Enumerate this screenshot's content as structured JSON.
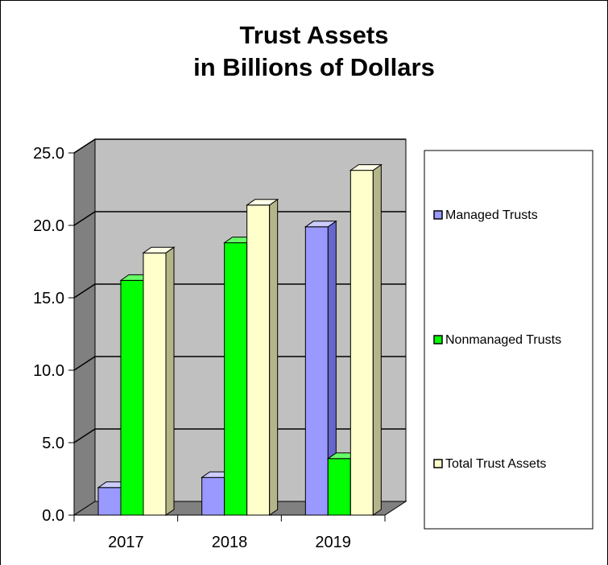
{
  "chart_data": {
    "type": "bar",
    "title_lines": [
      "Trust Assets",
      "in Billions of Dollars"
    ],
    "categories": [
      "2017",
      "2018",
      "2019"
    ],
    "series": [
      {
        "name": "Managed Trusts",
        "values": [
          1.9,
          2.6,
          19.9
        ],
        "color": "#9999ff",
        "side": "#6666cc",
        "top": "#ccccff"
      },
      {
        "name": "Nonmanaged Trusts",
        "values": [
          16.2,
          18.8,
          3.9
        ],
        "color": "#00ff00",
        "side": "#009900",
        "top": "#66ff66"
      },
      {
        "name": "Total Trust Assets",
        "values": [
          18.1,
          21.4,
          23.8
        ],
        "color": "#ffffcc",
        "side": "#b5b58a",
        "top": "#ffffe8"
      }
    ],
    "yticks": [
      "0.0",
      "5.0",
      "10.0",
      "15.0",
      "20.0",
      "25.0"
    ],
    "ylim": [
      0,
      25
    ],
    "grid": true,
    "legend_position": "right",
    "colors": {
      "wall": "#c0c0c0",
      "side_wall": "#808080",
      "floor": "#808080"
    }
  }
}
